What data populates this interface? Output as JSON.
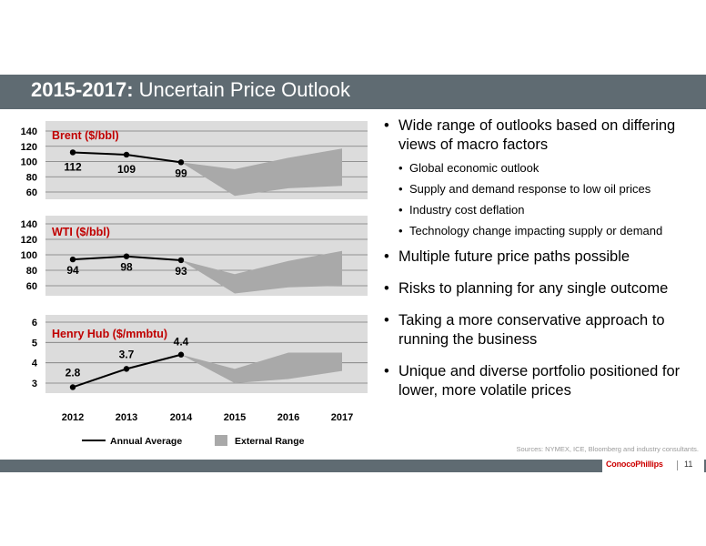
{
  "slide": {
    "title_bold": "2015-2017:",
    "title_rest": " Uncertain Price Outlook",
    "sources": "Sources: NYMEX, ICE, Bloomberg and industry consultants.",
    "logo": "ConocoPhillips",
    "page_number": "11"
  },
  "bullets": [
    {
      "level": 1,
      "text": "Wide range of outlooks based on differing views of macro factors"
    },
    {
      "level": 2,
      "text": "Global economic outlook"
    },
    {
      "level": 2,
      "text": "Supply and demand response to low oil prices"
    },
    {
      "level": 2,
      "text": "Industry cost deflation"
    },
    {
      "level": 2,
      "text": "Technology change impacting supply or demand"
    },
    {
      "level": 1,
      "text": "Multiple future price paths possible"
    },
    {
      "level": 1,
      "text": "Risks to planning for any single outcome"
    },
    {
      "level": 1,
      "text": "Taking a more conservative approach to running the business"
    },
    {
      "level": 1,
      "text": "Unique and diverse portfolio positioned for lower, more volatile prices"
    }
  ],
  "colors": {
    "title_bar": "#5f6b72",
    "plot_bg": "#dcdcdc",
    "range_fill": "#a9a9a9",
    "chart_label": "#c00000",
    "line": "#000000"
  },
  "chart_data": [
    {
      "type": "line",
      "title": "Brent ($/bbl)",
      "x": [
        "2012",
        "2013",
        "2014",
        "2015",
        "2016",
        "2017"
      ],
      "series": [
        {
          "name": "Annual Average",
          "values": [
            112,
            109,
            99,
            null,
            null,
            null
          ]
        }
      ],
      "range": {
        "name": "External Range",
        "x": [
          "2014",
          "2015",
          "2016",
          "2017"
        ],
        "low": [
          99,
          55,
          65,
          68
        ],
        "high": [
          99,
          90,
          105,
          117
        ]
      },
      "data_labels": [
        "112",
        "109",
        "99"
      ],
      "yticks": [
        60,
        80,
        100,
        120,
        140
      ],
      "ylim": [
        50,
        140
      ],
      "grid": true
    },
    {
      "type": "line",
      "title": "WTI ($/bbl)",
      "x": [
        "2012",
        "2013",
        "2014",
        "2015",
        "2016",
        "2017"
      ],
      "series": [
        {
          "name": "Annual Average",
          "values": [
            94,
            98,
            93,
            null,
            null,
            null
          ]
        }
      ],
      "range": {
        "name": "External Range",
        "x": [
          "2014",
          "2015",
          "2016",
          "2017"
        ],
        "low": [
          93,
          50,
          58,
          60
        ],
        "high": [
          93,
          75,
          92,
          105
        ]
      },
      "data_labels": [
        "94",
        "98",
        "93"
      ],
      "yticks": [
        60,
        80,
        100,
        120,
        140
      ],
      "ylim": [
        45,
        140
      ],
      "grid": true
    },
    {
      "type": "line",
      "title": "Henry Hub ($/mmbtu)",
      "x": [
        "2012",
        "2013",
        "2014",
        "2015",
        "2016",
        "2017"
      ],
      "series": [
        {
          "name": "Annual Average",
          "values": [
            2.8,
            3.7,
            4.4,
            null,
            null,
            null
          ]
        }
      ],
      "range": {
        "name": "External Range",
        "x": [
          "2014",
          "2015",
          "2016",
          "2017"
        ],
        "low": [
          4.4,
          3.0,
          3.2,
          3.6
        ],
        "high": [
          4.4,
          3.7,
          4.5,
          4.5
        ]
      },
      "data_labels": [
        "2.8",
        "3.7",
        "4.4"
      ],
      "yticks": [
        3,
        4,
        5,
        6
      ],
      "ylim": [
        2.5,
        6
      ],
      "grid": true
    }
  ],
  "x_labels": [
    "2012",
    "2013",
    "2014",
    "2015",
    "2016",
    "2017"
  ],
  "legend": {
    "line_label": "Annual Average",
    "range_label": "External Range",
    "position": "bottom"
  }
}
